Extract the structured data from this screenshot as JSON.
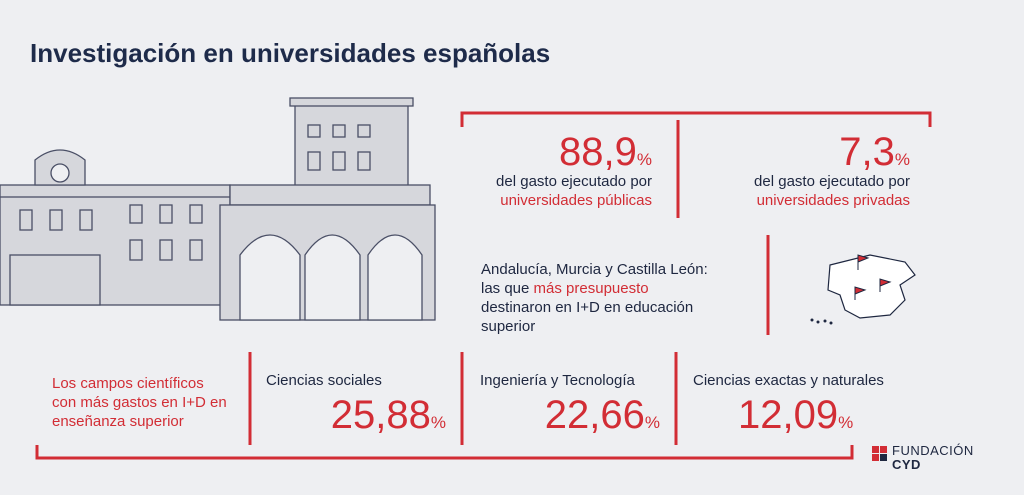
{
  "title": "Investigación en universidades españolas",
  "stats": [
    {
      "value": "88,9",
      "unit": "%",
      "label": "del gasto ejecutado por",
      "highlight": "universidades públicas"
    },
    {
      "value": "7,3",
      "unit": "%",
      "label": "del gasto ejecutado por",
      "highlight": "universidades privadas"
    }
  ],
  "regions": {
    "before": "Andalucía, Murcia y Castilla León: las que ",
    "highlight": "más presupuesto",
    "after": " destinaron en I+D en educación superior"
  },
  "fields": {
    "intro": "Los campos científicos con más gastos en I+D en enseñanza superior",
    "items": [
      {
        "name": "Ciencias sociales",
        "value": "25,88",
        "unit": "%"
      },
      {
        "name": "Ingeniería y Tecnología",
        "value": "22,66",
        "unit": "%"
      },
      {
        "name": "Ciencias exactas y naturales",
        "value": "12,09",
        "unit": "%"
      }
    ]
  },
  "logo": {
    "line1": "FUNDACIÓN",
    "line2": "CYD"
  }
}
